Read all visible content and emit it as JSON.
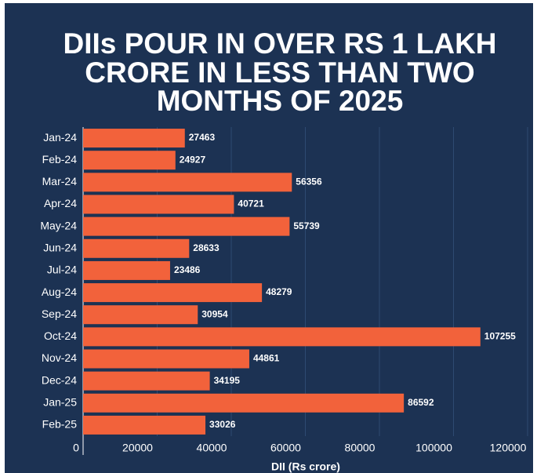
{
  "chart_data": {
    "type": "barh",
    "title_lines": [
      "DIIs POUR IN OVER RS 1 LAKH",
      "CRORE IN LESS THAN TWO",
      "MONTHS OF 2025"
    ],
    "x_label": "DII (Rs crore)",
    "categories": [
      "Jan-24",
      "Feb-24",
      "Mar-24",
      "Apr-24",
      "May-24",
      "Jun-24",
      "Jul-24",
      "Aug-24",
      "Sep-24",
      "Oct-24",
      "Nov-24",
      "Dec-24",
      "Jan-25",
      "Feb-25"
    ],
    "values": [
      27463,
      24927,
      56356,
      40721,
      55739,
      28633,
      23486,
      48279,
      30954,
      107255,
      44861,
      34195,
      86592,
      33026
    ],
    "color": "#f2623b",
    "xlim": [
      0,
      120000
    ],
    "xticks": [
      0,
      20000,
      40000,
      60000,
      80000,
      100000,
      120000
    ],
    "grid": true
  }
}
